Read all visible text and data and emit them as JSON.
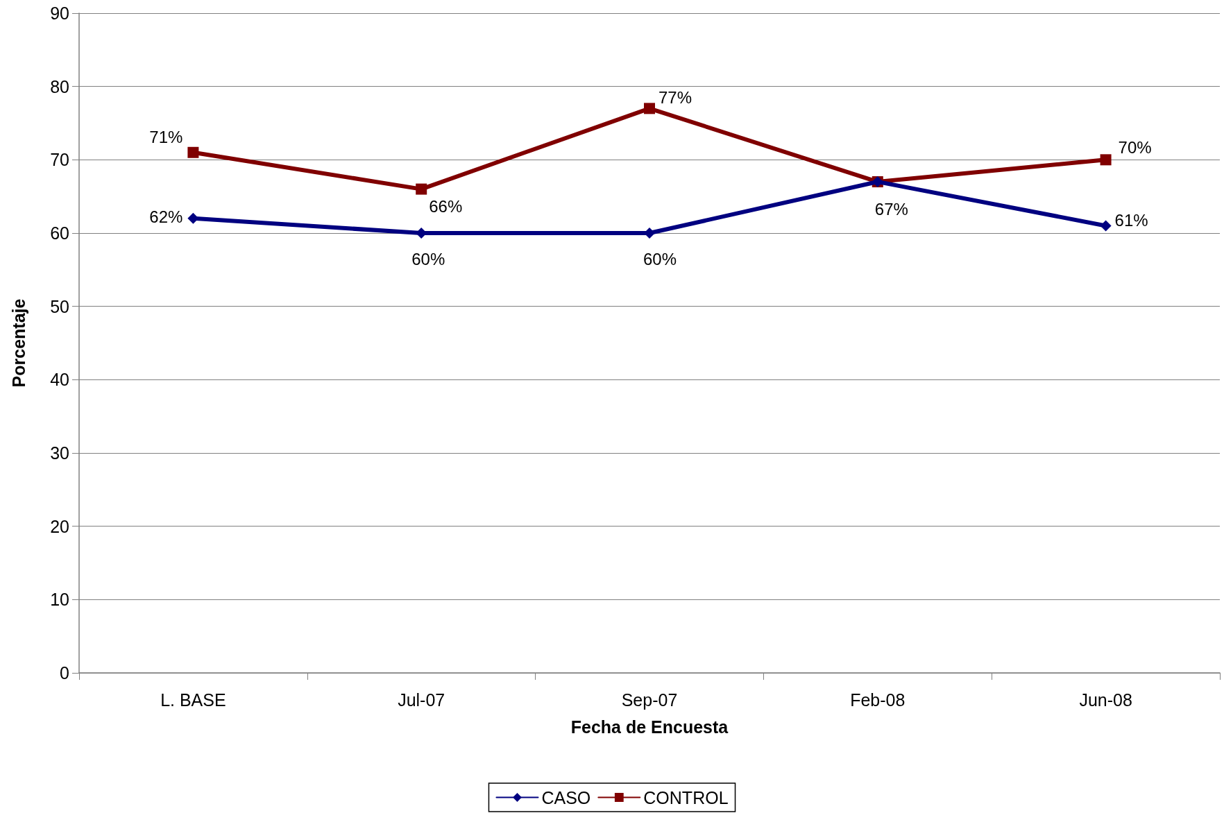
{
  "chart_data": {
    "type": "line",
    "xlabel": "Fecha de Encuesta",
    "ylabel": "Porcentaje",
    "categories": [
      "L. BASE",
      "Jul-07",
      "Sep-07",
      "Feb-08",
      "Jun-08"
    ],
    "series": [
      {
        "name": "CASO",
        "color": "#000080",
        "marker": "diamond",
        "values": [
          62,
          60,
          60,
          67,
          61
        ],
        "value_labels": [
          "62%",
          "60%",
          "60%",
          null,
          "61%"
        ]
      },
      {
        "name": "CONTROL",
        "color": "#800000",
        "marker": "square",
        "values": [
          71,
          66,
          77,
          67,
          70
        ],
        "value_labels": [
          "71%",
          "66%",
          "77%",
          "67%",
          "70%"
        ]
      }
    ],
    "ylim": [
      0,
      90
    ],
    "yticks": [
      0,
      10,
      20,
      30,
      40,
      50,
      60,
      70,
      80,
      90
    ],
    "grid": "y",
    "legend": "bottom",
    "line_style": "solid"
  }
}
